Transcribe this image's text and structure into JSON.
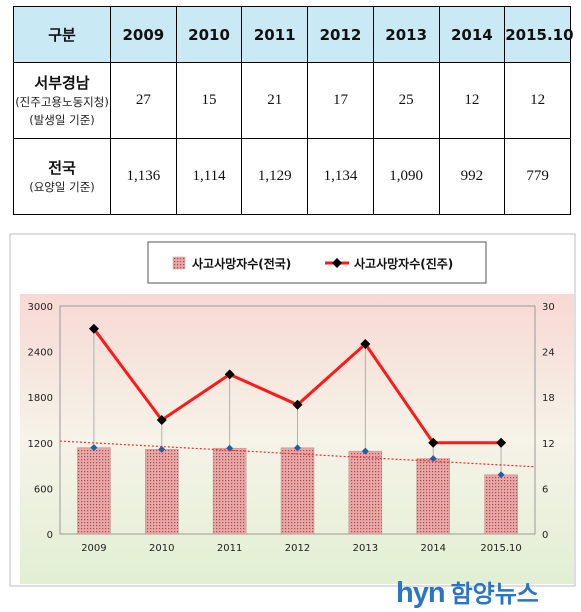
{
  "table": {
    "header": [
      "구분",
      "2009",
      "2010",
      "2011",
      "2012",
      "2013",
      "2014",
      "2015.10"
    ],
    "rows": [
      {
        "name": "서부경남",
        "notes": [
          "(진주고용노동지청)",
          "(발생일 기준)"
        ],
        "values": [
          "27",
          "15",
          "21",
          "17",
          "25",
          "12",
          "12"
        ]
      },
      {
        "name": "전국",
        "notes": [
          "(요양일 기준)"
        ],
        "values": [
          "1,136",
          "1,114",
          "1,129",
          "1,134",
          "1,090",
          "992",
          "779"
        ]
      }
    ]
  },
  "chart_data": {
    "type": "bar",
    "categories": [
      "2009",
      "2010",
      "2011",
      "2012",
      "2013",
      "2014",
      "2015.10"
    ],
    "series": [
      {
        "name": "사고사망자수(전국)",
        "kind": "bar",
        "axis": "left",
        "values": [
          1136,
          1114,
          1129,
          1134,
          1090,
          992,
          779
        ]
      },
      {
        "name": "사고사망자수(진주)",
        "kind": "line",
        "axis": "right",
        "values": [
          27,
          15,
          21,
          17,
          25,
          12,
          12
        ]
      }
    ],
    "y_left": {
      "range": [
        0,
        3000
      ],
      "ticks": [
        "0",
        "600",
        "1200",
        "1800",
        "2400",
        "3000"
      ]
    },
    "y_right": {
      "range": [
        0,
        30
      ],
      "ticks": [
        "0",
        "6",
        "12",
        "18",
        "24",
        "30"
      ]
    },
    "trendline": {
      "series": "사고사망자수(전국)",
      "style": "dashed",
      "color": "#ff2a2a"
    },
    "legend": "top-center",
    "colors": {
      "bar": "#e09a9a",
      "line": "#ff1a1a",
      "marker": "#000000",
      "bar_top_marker": "#1f5fa8"
    }
  },
  "watermark": {
    "latin": "hyn",
    "korean": "함양뉴스"
  }
}
